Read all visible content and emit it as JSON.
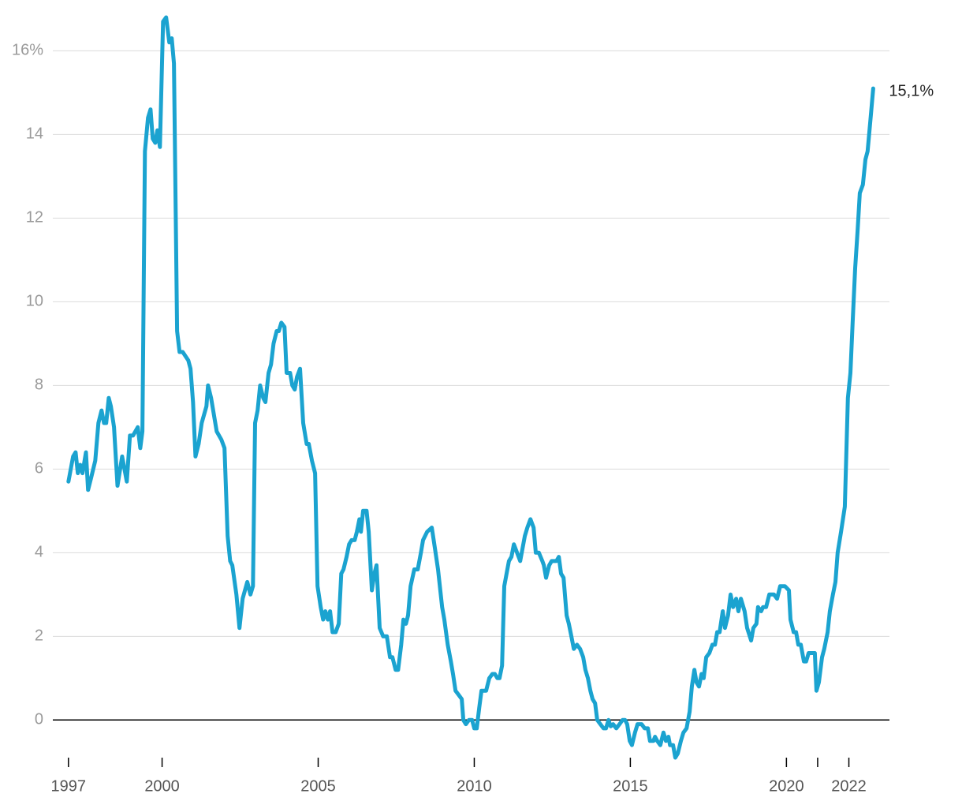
{
  "chart_data": {
    "type": "line",
    "x": [
      1997.0,
      1997.15,
      1997.23,
      1997.3,
      1997.38,
      1997.45,
      1997.56,
      1997.63,
      1997.73,
      1997.86,
      1997.96,
      1998.06,
      1998.14,
      1998.21,
      1998.29,
      1998.36,
      1998.46,
      1998.57,
      1998.72,
      1998.87,
      1998.97,
      1999.07,
      1999.22,
      1999.3,
      1999.37,
      1999.45,
      1999.55,
      1999.63,
      1999.7,
      1999.78,
      1999.85,
      1999.93,
      2000.03,
      2000.13,
      2000.23,
      2000.31,
      2000.38,
      2000.48,
      2000.56,
      2000.66,
      2000.84,
      2000.91,
      2000.99,
      2001.07,
      2001.17,
      2001.27,
      2001.42,
      2001.47,
      2001.57,
      2001.75,
      2001.9,
      2002.0,
      2002.1,
      2002.18,
      2002.25,
      2002.38,
      2002.48,
      2002.58,
      2002.73,
      2002.83,
      2002.91,
      2002.98,
      2003.06,
      2003.14,
      2003.24,
      2003.31,
      2003.41,
      2003.49,
      2003.57,
      2003.67,
      2003.74,
      2003.82,
      2003.92,
      2003.99,
      2004.1,
      2004.17,
      2004.25,
      2004.32,
      2004.42,
      2004.52,
      2004.63,
      2004.7,
      2004.8,
      2004.9,
      2004.98,
      2005.08,
      2005.16,
      2005.23,
      2005.31,
      2005.38,
      2005.46,
      2005.56,
      2005.66,
      2005.74,
      2005.81,
      2005.91,
      2005.99,
      2006.07,
      2006.17,
      2006.24,
      2006.32,
      2006.37,
      2006.44,
      2006.55,
      2006.62,
      2006.72,
      2006.8,
      2006.87,
      2006.97,
      2007.08,
      2007.2,
      2007.3,
      2007.38,
      2007.48,
      2007.56,
      2007.66,
      2007.73,
      2007.81,
      2007.88,
      2007.96,
      2008.08,
      2008.19,
      2008.29,
      2008.36,
      2008.49,
      2008.64,
      2008.74,
      2008.84,
      2008.97,
      2009.04,
      2009.15,
      2009.25,
      2009.32,
      2009.4,
      2009.5,
      2009.6,
      2009.65,
      2009.73,
      2009.83,
      2009.93,
      2010.0,
      2010.08,
      2010.16,
      2010.23,
      2010.38,
      2010.48,
      2010.58,
      2010.66,
      2010.74,
      2010.81,
      2010.89,
      2010.96,
      2011.11,
      2011.19,
      2011.27,
      2011.37,
      2011.47,
      2011.62,
      2011.7,
      2011.8,
      2011.9,
      2011.97,
      2012.07,
      2012.18,
      2012.23,
      2012.3,
      2012.4,
      2012.48,
      2012.63,
      2012.71,
      2012.78,
      2012.86,
      2012.96,
      2013.03,
      2013.11,
      2013.19,
      2013.29,
      2013.39,
      2013.49,
      2013.56,
      2013.64,
      2013.72,
      2013.79,
      2013.87,
      2013.94,
      2014.04,
      2014.14,
      2014.22,
      2014.3,
      2014.37,
      2014.45,
      2014.55,
      2014.65,
      2014.75,
      2014.83,
      2014.9,
      2014.98,
      2015.05,
      2015.15,
      2015.23,
      2015.36,
      2015.46,
      2015.56,
      2015.63,
      2015.74,
      2015.79,
      2015.86,
      2015.96,
      2016.06,
      2016.14,
      2016.22,
      2016.27,
      2016.37,
      2016.44,
      2016.52,
      2016.62,
      2016.7,
      2016.8,
      2016.9,
      2016.97,
      2017.05,
      2017.12,
      2017.2,
      2017.28,
      2017.35,
      2017.43,
      2017.53,
      2017.63,
      2017.71,
      2017.78,
      2017.86,
      2017.96,
      2018.03,
      2018.13,
      2018.21,
      2018.29,
      2018.39,
      2018.46,
      2018.54,
      2018.66,
      2018.74,
      2018.87,
      2018.94,
      2019.04,
      2019.09,
      2019.19,
      2019.25,
      2019.35,
      2019.45,
      2019.6,
      2019.7,
      2019.8,
      2019.95,
      2020.08,
      2020.13,
      2020.23,
      2020.31,
      2020.38,
      2020.46,
      2020.56,
      2020.63,
      2020.71,
      2020.84,
      2020.91,
      2020.96,
      2021.04,
      2021.14,
      2021.21,
      2021.32,
      2021.39,
      2021.49,
      2021.57,
      2021.64,
      2021.75,
      2021.87,
      2021.97,
      2022.05,
      2022.12,
      2022.2,
      2022.28,
      2022.35,
      2022.45,
      2022.53,
      2022.6,
      2022.71,
      2022.78
    ],
    "series": [
      {
        "color": "#1ba3d0",
        "values": [
          5.7,
          6.3,
          6.4,
          5.9,
          6.1,
          5.9,
          6.4,
          5.5,
          5.8,
          6.2,
          7.1,
          7.4,
          7.1,
          7.1,
          7.7,
          7.5,
          7.0,
          5.6,
          6.3,
          5.7,
          6.8,
          6.8,
          7.0,
          6.5,
          6.9,
          13.6,
          14.4,
          14.6,
          13.9,
          13.8,
          14.1,
          13.7,
          16.7,
          16.8,
          16.2,
          16.3,
          15.7,
          9.3,
          8.8,
          8.8,
          8.6,
          8.4,
          7.6,
          6.3,
          6.6,
          7.1,
          7.5,
          8.0,
          7.7,
          6.9,
          6.7,
          6.5,
          4.4,
          3.8,
          3.7,
          3.0,
          2.2,
          2.9,
          3.3,
          3.0,
          3.2,
          7.1,
          7.4,
          8.0,
          7.7,
          7.6,
          8.3,
          8.5,
          9.0,
          9.3,
          9.3,
          9.5,
          9.4,
          8.3,
          8.3,
          8.0,
          7.9,
          8.2,
          8.4,
          7.1,
          6.6,
          6.6,
          6.2,
          5.9,
          3.2,
          2.7,
          2.4,
          2.6,
          2.4,
          2.6,
          2.1,
          2.1,
          2.3,
          3.5,
          3.6,
          3.9,
          4.2,
          4.3,
          4.3,
          4.5,
          4.8,
          4.5,
          5.0,
          5.0,
          4.5,
          3.1,
          3.5,
          3.7,
          2.2,
          2.0,
          2.0,
          1.5,
          1.5,
          1.2,
          1.2,
          1.8,
          2.4,
          2.3,
          2.5,
          3.2,
          3.6,
          3.6,
          4.0,
          4.3,
          4.5,
          4.6,
          4.1,
          3.6,
          2.7,
          2.4,
          1.8,
          1.4,
          1.1,
          0.7,
          0.6,
          0.5,
          0.0,
          -0.1,
          0.0,
          0.0,
          -0.2,
          -0.2,
          0.3,
          0.7,
          0.7,
          1.0,
          1.1,
          1.1,
          1.0,
          1.0,
          1.3,
          3.2,
          3.8,
          3.9,
          4.2,
          4.0,
          3.8,
          4.4,
          4.6,
          4.8,
          4.6,
          4.0,
          4.0,
          3.8,
          3.7,
          3.4,
          3.7,
          3.8,
          3.8,
          3.9,
          3.5,
          3.4,
          2.5,
          2.3,
          2.0,
          1.7,
          1.8,
          1.7,
          1.5,
          1.2,
          1.0,
          0.7,
          0.5,
          0.4,
          0.0,
          -0.1,
          -0.2,
          -0.2,
          0.0,
          -0.15,
          -0.1,
          -0.2,
          -0.1,
          0.0,
          0.0,
          -0.1,
          -0.5,
          -0.6,
          -0.3,
          -0.1,
          -0.1,
          -0.2,
          -0.2,
          -0.5,
          -0.5,
          -0.4,
          -0.5,
          -0.6,
          -0.3,
          -0.5,
          -0.4,
          -0.6,
          -0.6,
          -0.9,
          -0.8,
          -0.5,
          -0.3,
          -0.2,
          0.2,
          0.8,
          1.2,
          0.9,
          0.8,
          1.1,
          1.0,
          1.5,
          1.6,
          1.8,
          1.8,
          2.1,
          2.1,
          2.6,
          2.2,
          2.5,
          3.0,
          2.7,
          2.9,
          2.6,
          2.9,
          2.6,
          2.2,
          1.9,
          2.2,
          2.3,
          2.7,
          2.6,
          2.7,
          2.7,
          3.0,
          3.0,
          2.9,
          3.2,
          3.2,
          3.1,
          2.4,
          2.1,
          2.1,
          1.8,
          1.8,
          1.4,
          1.4,
          1.6,
          1.6,
          1.6,
          0.7,
          0.9,
          1.5,
          1.7,
          2.1,
          2.6,
          3.0,
          3.3,
          4.0,
          4.5,
          5.1,
          7.7,
          8.3,
          9.5,
          10.8,
          11.7,
          12.6,
          12.8,
          13.4,
          13.6,
          14.5,
          15.1
        ]
      }
    ],
    "annotation": "15,1%",
    "xlim": [
      1996.5,
      2023.3
    ],
    "xticks": [
      1997,
      2000,
      2005,
      2010,
      2015,
      2020,
      {
        "value": 2021,
        "label": null
      },
      2022
    ],
    "ylim": [
      -0.9,
      16.8
    ],
    "yticks": [
      0,
      2,
      4,
      6,
      8,
      10,
      12,
      14,
      {
        "value": 16,
        "label": "16%"
      }
    ],
    "grid": true
  }
}
